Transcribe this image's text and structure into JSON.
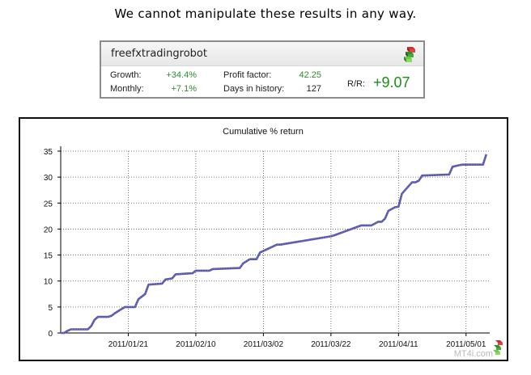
{
  "headline": "We cannot manipulate these results in any way.",
  "stats": {
    "name": "freefxtradingrobot",
    "growth_label": "Growth:",
    "growth_value": "+34.4%",
    "monthly_label": "Monthly:",
    "monthly_value": "+7.1%",
    "profit_factor_label": "Profit factor:",
    "profit_factor_value": "42.25",
    "days_label": "Days in history:",
    "days_value": "127",
    "rr_label": "R/R:",
    "rr_value": "+9.07",
    "logo_icon": "cubes-icon"
  },
  "watermark": "MT4i.com",
  "colors": {
    "positive": "#2e8b2e",
    "line": "#5555aa"
  },
  "chart_data": {
    "type": "line",
    "title": "Cumulative % return",
    "xlabel": "",
    "ylabel": "",
    "ylim": [
      0,
      35
    ],
    "yticks": [
      0,
      5,
      10,
      15,
      20,
      25,
      30,
      35
    ],
    "xticks": [
      "2011/01/21",
      "2011/02/10",
      "2011/03/02",
      "2011/03/22",
      "2011/04/11",
      "2011/05/01"
    ],
    "xlim": [
      "2011-01-01",
      "2011-05-08"
    ],
    "grid": true,
    "series": [
      {
        "x": [
          "2011-01-01",
          "2011-01-02",
          "2011-01-03",
          "2011-01-04",
          "2011-01-07",
          "2011-01-09",
          "2011-01-10",
          "2011-01-11",
          "2011-01-12",
          "2011-01-15",
          "2011-01-16",
          "2011-01-17",
          "2011-01-18",
          "2011-01-20",
          "2011-01-21",
          "2011-01-22",
          "2011-01-23",
          "2011-01-24",
          "2011-01-26",
          "2011-01-27",
          "2011-01-31",
          "2011-02-01",
          "2011-02-03",
          "2011-02-04",
          "2011-02-09",
          "2011-02-10",
          "2011-02-14",
          "2011-02-15",
          "2011-02-23",
          "2011-02-24",
          "2011-02-26",
          "2011-02-27",
          "2011-02-28",
          "2011-03-01",
          "2011-03-06",
          "2011-03-07",
          "2011-03-22",
          "2011-03-23",
          "2011-03-31",
          "2011-04-01",
          "2011-04-03",
          "2011-04-05",
          "2011-04-06",
          "2011-04-07",
          "2011-04-08",
          "2011-04-10",
          "2011-04-11",
          "2011-04-12",
          "2011-04-15",
          "2011-04-16",
          "2011-04-17",
          "2011-04-18",
          "2011-04-26",
          "2011-04-27",
          "2011-04-29",
          "2011-04-30",
          "2011-05-06",
          "2011-05-07"
        ],
        "values": [
          0,
          0,
          0.4,
          0.7,
          0.7,
          0.7,
          1.3,
          2.5,
          3.1,
          3.1,
          3.3,
          3.8,
          4.2,
          5.0,
          5.0,
          5.0,
          5.0,
          6.5,
          7.5,
          9.3,
          9.5,
          10.3,
          10.5,
          11.3,
          11.5,
          12.0,
          12.0,
          12.3,
          12.5,
          13.4,
          14.2,
          14.2,
          14.2,
          15.5,
          17.0,
          17.0,
          18.6,
          18.8,
          20.7,
          20.7,
          20.7,
          21.4,
          21.4,
          22.0,
          23.5,
          24.2,
          24.3,
          26.8,
          29.0,
          29.0,
          29.3,
          30.3,
          30.5,
          32.0,
          32.3,
          32.4,
          32.4,
          34.4
        ]
      }
    ]
  }
}
